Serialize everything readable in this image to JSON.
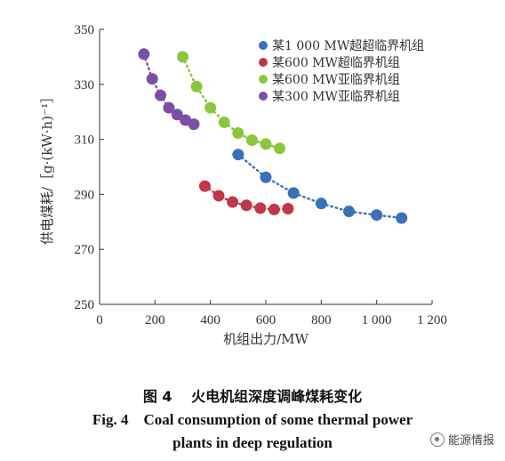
{
  "chart_data": {
    "type": "scatter",
    "ylabel": "供电煤耗/［g·(kW·h)⁻¹］",
    "xlabel": "机组出力/MW",
    "xlim": [
      0,
      1200
    ],
    "ylim": [
      250,
      350
    ],
    "xticks": [
      0,
      200,
      400,
      600,
      800,
      1000,
      1200
    ],
    "xtick_labels": [
      "0",
      "200",
      "400",
      "600",
      "800",
      "1 000",
      "1 200"
    ],
    "yticks": [
      250,
      270,
      290,
      310,
      330,
      350
    ],
    "ytick_labels": [
      "250",
      "270",
      "290",
      "310",
      "330",
      "350"
    ],
    "grid": false,
    "legend_position": "top-right",
    "series": [
      {
        "name": "某1 000 MW超超临界机组",
        "color": "#3a6fba",
        "x": [
          500,
          600,
          700,
          800,
          900,
          1000,
          1090
        ],
        "y": [
          304.5,
          296.2,
          290.5,
          286.7,
          283.8,
          282.5,
          281.4
        ]
      },
      {
        "name": "某600 MW超临界机组",
        "color": "#c0374a",
        "x": [
          380,
          430,
          480,
          530,
          580,
          630,
          680
        ],
        "y": [
          293.0,
          289.5,
          287.2,
          286.0,
          285.0,
          284.5,
          284.8
        ]
      },
      {
        "name": "某600 MW亚临界机组",
        "color": "#8cc63f",
        "x": [
          300,
          350,
          400,
          450,
          500,
          550,
          600,
          650
        ],
        "y": [
          340.0,
          329.2,
          321.5,
          316.2,
          312.3,
          309.7,
          308.3,
          306.7
        ]
      },
      {
        "name": "某300 MW亚临界机组",
        "color": "#7b4fa8",
        "x": [
          160,
          190,
          220,
          250,
          280,
          310,
          340
        ],
        "y": [
          341.0,
          332.0,
          326.0,
          321.5,
          319.0,
          317.0,
          315.5
        ]
      }
    ]
  },
  "caption": {
    "zh": "图 4　 火电机组深度调峰煤耗变化",
    "en_line1": "Fig. 4　Coal consumption of some thermal power",
    "en_line2": "plants in deep regulation"
  },
  "watermark": {
    "text": "能源情报",
    "icon": "wechat-account-icon"
  }
}
